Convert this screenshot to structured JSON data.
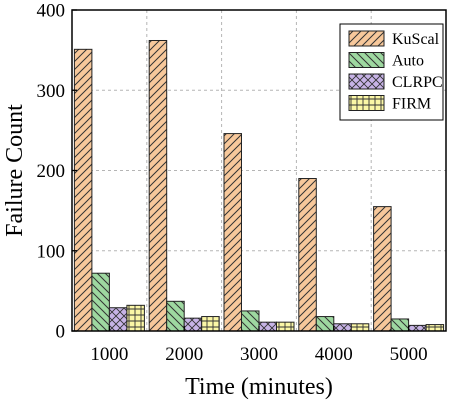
{
  "chart_data": {
    "type": "bar",
    "title": "",
    "xlabel": "Time (minutes)",
    "ylabel": "Failure Count",
    "categories": [
      "1000",
      "2000",
      "3000",
      "4000",
      "5000"
    ],
    "ylim": [
      0,
      400
    ],
    "yticks": [
      "0",
      "100",
      "200",
      "300",
      "400"
    ],
    "grid": true,
    "legend_position": "top-right",
    "series": [
      {
        "name": "KuScal",
        "values": [
          351,
          362,
          246,
          190,
          155
        ],
        "color": "#f7c89b",
        "hatch": "diagonal"
      },
      {
        "name": "Auto",
        "values": [
          72,
          37,
          25,
          18,
          15
        ],
        "color": "#9ed8a0",
        "hatch": "back-diagonal"
      },
      {
        "name": "CLRPC",
        "values": [
          29,
          16,
          11,
          9,
          7
        ],
        "color": "#c7b3e6",
        "hatch": "cross"
      },
      {
        "name": "FIRM",
        "values": [
          32,
          18,
          11,
          9,
          8
        ],
        "color": "#fbf7a6",
        "hatch": "grid"
      }
    ]
  }
}
